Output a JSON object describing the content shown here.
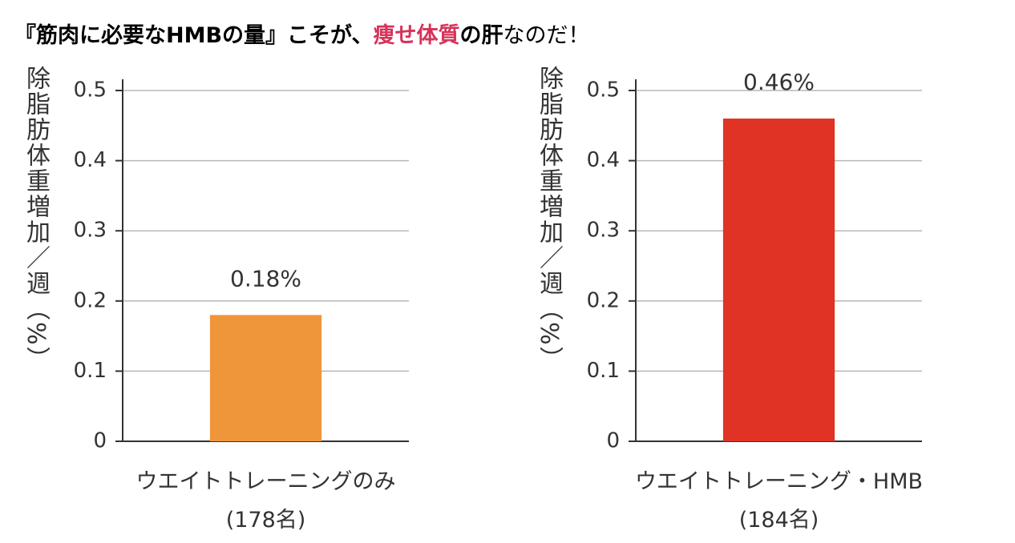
{
  "header": {
    "title_parts": [
      {
        "text": "『筋肉に必要なHMBの量』こそが、",
        "color": "#000000",
        "bold": true
      },
      {
        "text": "痩せ体質",
        "color": "#d6335a",
        "bold": true
      },
      {
        "text": "の肝",
        "color": "#000000",
        "bold": true
      },
      {
        "text": "なのだ！",
        "color": "#000000",
        "bold": false
      }
    ]
  },
  "chart_data": [
    {
      "type": "bar",
      "y_label": "除脂肪体重増加／週（%）",
      "categories": [
        "ウエイトトレーニングのみ\n(178名)"
      ],
      "values": [
        0.18
      ],
      "value_labels": [
        "0.18%"
      ],
      "color": "#f0963a",
      "ylim": [
        0,
        0.5
      ],
      "yticks": [
        0,
        0.1,
        0.2,
        0.3,
        0.4,
        0.5
      ],
      "grid": true
    },
    {
      "type": "bar",
      "y_label": "除脂肪体重増加／週（%）",
      "categories": [
        "ウエイトトレーニング・HMB\n(184名)"
      ],
      "values": [
        0.46
      ],
      "value_labels": [
        "0.46%"
      ],
      "color": "#e03325",
      "ylim": [
        0,
        0.5
      ],
      "yticks": [
        0,
        0.1,
        0.2,
        0.3,
        0.4,
        0.5
      ],
      "grid": true
    }
  ]
}
